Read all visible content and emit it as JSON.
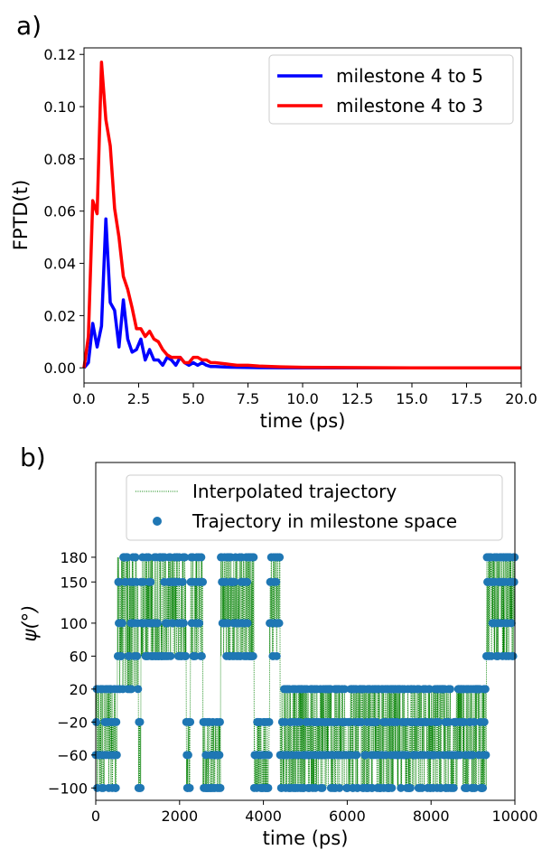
{
  "chart_data": [
    {
      "panel_label": "a)",
      "type": "line",
      "xlabel": "time (ps)",
      "ylabel": "FPTD(t)",
      "xlim": [
        0,
        20
      ],
      "ylim": [
        -0.0058,
        0.1225
      ],
      "xticks": [
        0,
        2.5,
        5,
        7.5,
        10,
        12.5,
        15,
        17.5,
        20
      ],
      "xtick_labels": [
        "0.0",
        "2.5",
        "5.0",
        "7.5",
        "10.0",
        "12.5",
        "15.0",
        "17.5",
        "20.0"
      ],
      "yticks": [
        0,
        0.02,
        0.04,
        0.06,
        0.08,
        0.1,
        0.12
      ],
      "ytick_labels": [
        "0.00",
        "0.02",
        "0.04",
        "0.06",
        "0.08",
        "0.10",
        "0.12"
      ],
      "grid": false,
      "legend": "top-right",
      "series": [
        {
          "name": "milestone 4 to 5",
          "color": "#0000ff",
          "x": [
            0,
            0.2,
            0.4,
            0.6,
            0.8,
            1.0,
            1.2,
            1.4,
            1.6,
            1.8,
            2.0,
            2.2,
            2.4,
            2.6,
            2.8,
            3.0,
            3.2,
            3.4,
            3.6,
            3.8,
            4.0,
            4.2,
            4.4,
            4.6,
            4.8,
            5.0,
            5.2,
            5.4,
            5.6,
            5.8,
            6.0,
            6.5,
            7.0,
            8.0,
            10.0,
            15.0,
            20.0
          ],
          "y": [
            0,
            0.002,
            0.017,
            0.008,
            0.016,
            0.057,
            0.025,
            0.022,
            0.008,
            0.026,
            0.011,
            0.006,
            0.007,
            0.011,
            0.003,
            0.007,
            0.003,
            0.003,
            0.001,
            0.004,
            0.003,
            0.001,
            0.004,
            0.002,
            0.001,
            0.002,
            0.001,
            0.002,
            0.001,
            0.0005,
            0.0005,
            0.0003,
            0.0002,
            0.0001,
            0,
            0,
            0
          ]
        },
        {
          "name": "milestone 4 to 3",
          "color": "#ff0000",
          "x": [
            0,
            0.2,
            0.4,
            0.6,
            0.8,
            1.0,
            1.2,
            1.4,
            1.6,
            1.8,
            2.0,
            2.2,
            2.4,
            2.6,
            2.8,
            3.0,
            3.2,
            3.4,
            3.6,
            3.8,
            4.0,
            4.2,
            4.4,
            4.6,
            4.8,
            5.0,
            5.2,
            5.4,
            5.6,
            5.8,
            6.0,
            6.5,
            7.0,
            7.5,
            8.0,
            9.0,
            10.0,
            15.0,
            20.0
          ],
          "y": [
            0,
            0.012,
            0.064,
            0.059,
            0.117,
            0.095,
            0.085,
            0.061,
            0.05,
            0.035,
            0.03,
            0.023,
            0.015,
            0.015,
            0.012,
            0.014,
            0.011,
            0.01,
            0.007,
            0.005,
            0.004,
            0.004,
            0.004,
            0.002,
            0.002,
            0.004,
            0.004,
            0.003,
            0.003,
            0.002,
            0.002,
            0.0015,
            0.001,
            0.001,
            0.0007,
            0.0004,
            0.0002,
            0,
            0
          ]
        }
      ]
    },
    {
      "panel_label": "b)",
      "type": "line",
      "xlabel": "time (ps)",
      "ylabel": "ψ(°)",
      "xlim": [
        0,
        10000
      ],
      "ylim": [
        -115,
        295
      ],
      "xticks": [
        0,
        2000,
        4000,
        6000,
        8000,
        10000
      ],
      "xtick_labels": [
        "0",
        "2000",
        "4000",
        "6000",
        "8000",
        "10000"
      ],
      "yticks": [
        -100,
        -60,
        -20,
        20,
        60,
        100,
        150,
        180
      ],
      "ytick_labels": [
        "−100",
        "−60",
        "−20",
        "20",
        "60",
        "100",
        "150",
        "180"
      ],
      "grid": false,
      "legend": "top-center",
      "milestone_levels": [
        -100,
        -60,
        -20,
        20,
        60,
        100,
        150,
        180
      ],
      "segments": [
        {
          "t_start": 0,
          "t_end": 520,
          "levels": [
            -100,
            -60,
            -20,
            20
          ]
        },
        {
          "t_start": 520,
          "t_end": 1020,
          "levels": [
            20,
            60,
            100,
            150,
            180
          ]
        },
        {
          "t_start": 1020,
          "t_end": 1080,
          "levels": [
            -100,
            -60,
            -20
          ]
        },
        {
          "t_start": 1080,
          "t_end": 2160,
          "levels": [
            60,
            100,
            150,
            180
          ]
        },
        {
          "t_start": 2160,
          "t_end": 2260,
          "levels": [
            -100,
            -60,
            -20
          ]
        },
        {
          "t_start": 2260,
          "t_end": 2560,
          "levels": [
            60,
            100,
            150,
            180
          ]
        },
        {
          "t_start": 2560,
          "t_end": 2980,
          "levels": [
            -100,
            -60,
            -20
          ]
        },
        {
          "t_start": 2980,
          "t_end": 3780,
          "levels": [
            60,
            100,
            150,
            180
          ]
        },
        {
          "t_start": 3780,
          "t_end": 4150,
          "levels": [
            -100,
            -60,
            -20
          ]
        },
        {
          "t_start": 4150,
          "t_end": 4400,
          "levels": [
            60,
            100,
            150,
            180
          ]
        },
        {
          "t_start": 4400,
          "t_end": 9320,
          "levels": [
            -100,
            -60,
            -20,
            20
          ]
        },
        {
          "t_start": 9320,
          "t_end": 10000,
          "levels": [
            60,
            100,
            150,
            180
          ]
        }
      ],
      "series": [
        {
          "name": "Interpolated trajectory",
          "color": "#008000",
          "style": "dotted-line"
        },
        {
          "name": "Trajectory in milestone space",
          "color": "#1f77b4",
          "style": "markers"
        }
      ]
    }
  ]
}
